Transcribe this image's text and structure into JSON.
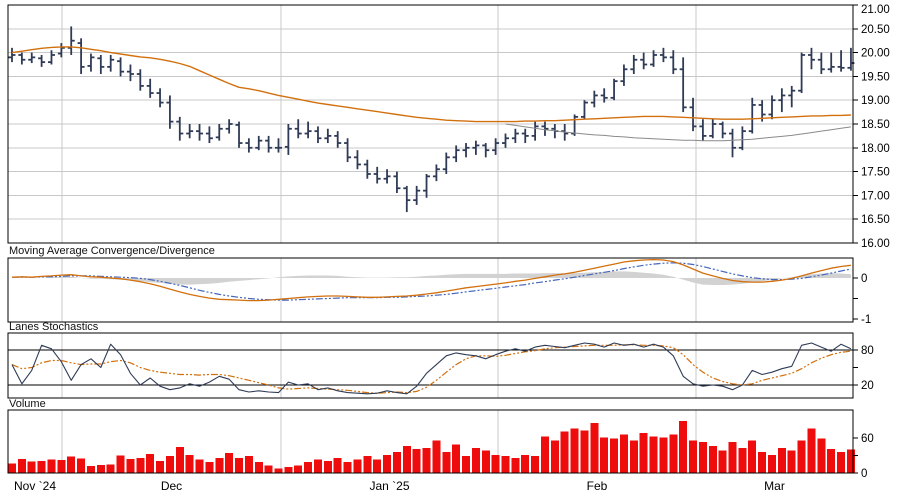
{
  "page": {
    "background": "#ffffff"
  },
  "colors": {
    "price_bars": "#2f3b56",
    "ma_primary": "#d2700e",
    "ma_secondary": "#8a8a8a",
    "macd_line": "#d2700e",
    "macd_signal": "#4466bb",
    "macd_histogram": "#d2d2d2",
    "stoch_k": "#2f3b56",
    "stoch_d": "#d2700e",
    "volume_bars": "#ee0c0c",
    "grid": "#c8c8c8",
    "panel_border": "#000000",
    "axis_text": "#000000"
  },
  "chart_data": {
    "type": "ohlc",
    "x_axis": {
      "tick_labels": [
        "Nov `24",
        "Dec",
        "Jan `25",
        "Feb",
        "Mar"
      ],
      "month_boundaries_x": [
        62,
        281,
        498,
        696
      ]
    },
    "price_panel": {
      "ylim": [
        16,
        21
      ],
      "ytick_values": [
        21,
        20.5,
        20,
        19.5,
        19,
        18.5,
        18,
        17.5,
        17,
        16.5,
        16
      ],
      "ytick_labels": [
        "21.00",
        "20.50",
        "20.00",
        "19.50",
        "19.00",
        "18.50",
        "18.00",
        "17.50",
        "17.00",
        "16.50",
        "16.00"
      ],
      "ohlc": [
        [
          19.9,
          20.1,
          19.8,
          19.95
        ],
        [
          19.95,
          20.0,
          19.75,
          19.85
        ],
        [
          19.85,
          20.0,
          19.78,
          19.9
        ],
        [
          19.88,
          19.95,
          19.7,
          19.8
        ],
        [
          19.8,
          20.05,
          19.75,
          19.95
        ],
        [
          19.98,
          20.2,
          19.9,
          20.1
        ],
        [
          20.1,
          20.55,
          19.95,
          20.25
        ],
        [
          20.2,
          20.3,
          19.55,
          19.7
        ],
        [
          19.72,
          19.98,
          19.6,
          19.9
        ],
        [
          19.88,
          19.95,
          19.55,
          19.7
        ],
        [
          19.7,
          19.95,
          19.6,
          19.85
        ],
        [
          19.82,
          19.9,
          19.5,
          19.6
        ],
        [
          19.6,
          19.75,
          19.4,
          19.55
        ],
        [
          19.55,
          19.65,
          19.2,
          19.3
        ],
        [
          19.3,
          19.45,
          19.05,
          19.15
        ],
        [
          19.15,
          19.25,
          18.85,
          18.95
        ],
        [
          18.95,
          19.1,
          18.4,
          18.55
        ],
        [
          18.55,
          18.65,
          18.15,
          18.3
        ],
        [
          18.3,
          18.5,
          18.2,
          18.35
        ],
        [
          18.35,
          18.5,
          18.15,
          18.3
        ],
        [
          18.3,
          18.45,
          18.1,
          18.2
        ],
        [
          18.22,
          18.5,
          18.15,
          18.4
        ],
        [
          18.4,
          18.6,
          18.3,
          18.5
        ],
        [
          18.48,
          18.55,
          18.0,
          18.1
        ],
        [
          18.1,
          18.2,
          17.9,
          18.0
        ],
        [
          18.0,
          18.25,
          17.95,
          18.15
        ],
        [
          18.15,
          18.25,
          17.9,
          18.0
        ],
        [
          18.0,
          18.2,
          17.9,
          18.0
        ],
        [
          18.02,
          18.5,
          17.85,
          18.4
        ],
        [
          18.4,
          18.6,
          18.2,
          18.3
        ],
        [
          18.3,
          18.55,
          18.2,
          18.35
        ],
        [
          18.35,
          18.45,
          18.1,
          18.2
        ],
        [
          18.2,
          18.4,
          18.1,
          18.25
        ],
        [
          18.25,
          18.35,
          18.0,
          18.1
        ],
        [
          18.1,
          18.2,
          17.7,
          17.8
        ],
        [
          17.8,
          17.95,
          17.55,
          17.65
        ],
        [
          17.65,
          17.75,
          17.35,
          17.45
        ],
        [
          17.45,
          17.6,
          17.25,
          17.35
        ],
        [
          17.35,
          17.55,
          17.25,
          17.4
        ],
        [
          17.4,
          17.5,
          17.05,
          17.15
        ],
        [
          17.15,
          17.2,
          16.65,
          16.9
        ],
        [
          16.9,
          17.2,
          16.8,
          17.1
        ],
        [
          17.1,
          17.45,
          16.95,
          17.4
        ],
        [
          17.4,
          17.65,
          17.3,
          17.55
        ],
        [
          17.55,
          17.9,
          17.45,
          17.8
        ],
        [
          17.8,
          18.05,
          17.7,
          17.95
        ],
        [
          17.95,
          18.1,
          17.8,
          18.0
        ],
        [
          18.0,
          18.15,
          17.85,
          18.05
        ],
        [
          18.05,
          18.1,
          17.8,
          17.95
        ],
        [
          17.95,
          18.2,
          17.85,
          18.1
        ],
        [
          18.1,
          18.3,
          18.0,
          18.2
        ],
        [
          18.2,
          18.4,
          18.1,
          18.3
        ],
        [
          18.3,
          18.4,
          18.1,
          18.25
        ],
        [
          18.25,
          18.55,
          18.15,
          18.45
        ],
        [
          18.45,
          18.55,
          18.25,
          18.4
        ],
        [
          18.4,
          18.5,
          18.2,
          18.35
        ],
        [
          18.35,
          18.5,
          18.15,
          18.3
        ],
        [
          18.3,
          18.7,
          18.25,
          18.65
        ],
        [
          18.65,
          19.0,
          18.6,
          18.95
        ],
        [
          18.95,
          19.2,
          18.85,
          19.1
        ],
        [
          19.1,
          19.25,
          18.95,
          19.05
        ],
        [
          19.05,
          19.45,
          19.0,
          19.4
        ],
        [
          19.4,
          19.75,
          19.3,
          19.65
        ],
        [
          19.65,
          19.95,
          19.55,
          19.85
        ],
        [
          19.85,
          20.0,
          19.65,
          19.75
        ],
        [
          19.75,
          20.05,
          19.7,
          19.95
        ],
        [
          19.95,
          20.1,
          19.8,
          19.9
        ],
        [
          19.9,
          20.05,
          19.55,
          19.65
        ],
        [
          19.65,
          19.9,
          18.75,
          18.85
        ],
        [
          18.85,
          19.05,
          18.35,
          18.45
        ],
        [
          18.45,
          18.6,
          18.15,
          18.25
        ],
        [
          18.25,
          18.6,
          18.2,
          18.5
        ],
        [
          18.5,
          18.55,
          18.2,
          18.3
        ],
        [
          18.3,
          18.4,
          17.8,
          18.0
        ],
        [
          18.0,
          18.45,
          17.95,
          18.35
        ],
        [
          18.35,
          19.05,
          18.3,
          18.9
        ],
        [
          18.9,
          19.0,
          18.55,
          18.7
        ],
        [
          18.7,
          19.1,
          18.6,
          19.0
        ],
        [
          19.0,
          19.25,
          18.75,
          19.1
        ],
        [
          19.1,
          19.3,
          18.85,
          19.2
        ],
        [
          19.2,
          20.0,
          19.15,
          19.95
        ],
        [
          19.95,
          20.1,
          19.65,
          19.85
        ],
        [
          19.85,
          20.0,
          19.55,
          19.65
        ],
        [
          19.65,
          20.0,
          19.58,
          19.7
        ],
        [
          19.7,
          20.05,
          19.6,
          19.68
        ],
        [
          19.68,
          20.1,
          19.62,
          19.78
        ]
      ],
      "ma_primary": [
        20.0,
        20.03,
        20.06,
        20.09,
        20.11,
        20.12,
        20.12,
        20.1,
        20.07,
        20.04,
        20.0,
        19.97,
        19.94,
        19.91,
        19.89,
        19.86,
        19.82,
        19.77,
        19.71,
        19.62,
        19.53,
        19.44,
        19.35,
        19.27,
        19.24,
        19.2,
        19.15,
        19.1,
        19.06,
        19.02,
        18.98,
        18.94,
        18.91,
        18.88,
        18.85,
        18.82,
        18.79,
        18.76,
        18.73,
        18.7,
        18.67,
        18.64,
        18.62,
        18.6,
        18.58,
        18.57,
        18.56,
        18.55,
        18.55,
        18.55,
        18.55,
        18.55,
        18.56,
        18.56,
        18.57,
        18.57,
        18.58,
        18.59,
        18.6,
        18.61,
        18.62,
        18.63,
        18.64,
        18.65,
        18.66,
        18.66,
        18.66,
        18.65,
        18.64,
        18.63,
        18.62,
        18.61,
        18.6,
        18.6,
        18.6,
        18.61,
        18.62,
        18.63,
        18.64,
        18.65,
        18.66,
        18.67,
        18.67,
        18.68,
        18.68,
        18.69
      ],
      "ma_secondary_start_index": 50,
      "ma_secondary": [
        18.5,
        18.47,
        18.44,
        18.41,
        18.38,
        18.36,
        18.33,
        18.31,
        18.29,
        18.27,
        18.26,
        18.24,
        18.23,
        18.21,
        18.2,
        18.19,
        18.18,
        18.17,
        18.16,
        18.16,
        18.15,
        18.15,
        18.15,
        18.16,
        18.17,
        18.18,
        18.2,
        18.22,
        18.24,
        18.26,
        18.29,
        18.32,
        18.35,
        18.38,
        18.41,
        18.44
      ]
    },
    "macd_panel": {
      "title": "Moving Average Convergence/Divergence",
      "ytick_values": [
        0,
        -0.5,
        -1
      ],
      "ytick_labels": [
        "0",
        "",
        "-1"
      ],
      "macd": [
        0.02,
        0.03,
        0.02,
        0.04,
        0.05,
        0.07,
        0.08,
        0.05,
        0.03,
        0.02,
        0.0,
        -0.02,
        -0.05,
        -0.09,
        -0.14,
        -0.2,
        -0.27,
        -0.34,
        -0.4,
        -0.45,
        -0.49,
        -0.52,
        -0.53,
        -0.54,
        -0.55,
        -0.55,
        -0.54,
        -0.52,
        -0.5,
        -0.48,
        -0.46,
        -0.45,
        -0.44,
        -0.44,
        -0.45,
        -0.46,
        -0.47,
        -0.47,
        -0.46,
        -0.45,
        -0.44,
        -0.42,
        -0.39,
        -0.36,
        -0.32,
        -0.28,
        -0.24,
        -0.21,
        -0.18,
        -0.15,
        -0.12,
        -0.08,
        -0.05,
        -0.01,
        0.03,
        0.07,
        0.1,
        0.14,
        0.19,
        0.24,
        0.29,
        0.34,
        0.39,
        0.42,
        0.44,
        0.45,
        0.44,
        0.4,
        0.32,
        0.22,
        0.12,
        0.05,
        -0.01,
        -0.06,
        -0.09,
        -0.1,
        -0.1,
        -0.08,
        -0.05,
        -0.01,
        0.05,
        0.12,
        0.18,
        0.24,
        0.28,
        0.31
      ],
      "signal": [
        0.02,
        0.02,
        0.02,
        0.03,
        0.03,
        0.04,
        0.05,
        0.05,
        0.05,
        0.04,
        0.03,
        0.02,
        0.01,
        -0.01,
        -0.04,
        -0.08,
        -0.13,
        -0.18,
        -0.24,
        -0.3,
        -0.35,
        -0.4,
        -0.44,
        -0.47,
        -0.5,
        -0.52,
        -0.53,
        -0.54,
        -0.54,
        -0.53,
        -0.52,
        -0.51,
        -0.5,
        -0.49,
        -0.48,
        -0.48,
        -0.48,
        -0.48,
        -0.47,
        -0.47,
        -0.46,
        -0.45,
        -0.44,
        -0.42,
        -0.4,
        -0.37,
        -0.34,
        -0.31,
        -0.28,
        -0.25,
        -0.22,
        -0.19,
        -0.16,
        -0.12,
        -0.09,
        -0.05,
        -0.02,
        0.02,
        0.06,
        0.1,
        0.14,
        0.18,
        0.23,
        0.27,
        0.31,
        0.34,
        0.36,
        0.37,
        0.36,
        0.33,
        0.28,
        0.22,
        0.16,
        0.1,
        0.05,
        0.01,
        -0.02,
        -0.04,
        -0.04,
        -0.03,
        -0.01,
        0.03,
        0.07,
        0.12,
        0.17,
        0.22
      ]
    },
    "stoch_panel": {
      "title": "Lanes Stochastics",
      "ytick_values": [
        80,
        50,
        20
      ],
      "ytick_labels": [
        "80",
        "",
        "20"
      ],
      "hlines": [
        80,
        20
      ],
      "k": [
        55,
        22,
        45,
        88,
        82,
        60,
        28,
        55,
        65,
        50,
        90,
        72,
        40,
        20,
        32,
        18,
        12,
        15,
        22,
        18,
        25,
        35,
        30,
        12,
        8,
        10,
        8,
        7,
        25,
        20,
        22,
        12,
        15,
        10,
        7,
        6,
        5,
        6,
        10,
        7,
        5,
        18,
        40,
        55,
        70,
        75,
        72,
        70,
        65,
        72,
        78,
        82,
        78,
        85,
        88,
        86,
        84,
        88,
        92,
        90,
        85,
        92,
        88,
        90,
        85,
        90,
        85,
        70,
        35,
        22,
        18,
        20,
        18,
        12,
        20,
        45,
        38,
        42,
        48,
        52,
        88,
        92,
        85,
        78,
        90,
        82
      ],
      "d": [
        55,
        48,
        50,
        58,
        62,
        62,
        58,
        55,
        56,
        56,
        60,
        62,
        58,
        50,
        45,
        42,
        40,
        38,
        38,
        37,
        38,
        38,
        36,
        32,
        28,
        24,
        20,
        15,
        13,
        14,
        15,
        14,
        13,
        12,
        11,
        9,
        7,
        6,
        7,
        8,
        7,
        9,
        16,
        28,
        42,
        55,
        65,
        70,
        70,
        69,
        71,
        74,
        77,
        79,
        82,
        84,
        85,
        86,
        87,
        88,
        88,
        88,
        89,
        89,
        88,
        88,
        87,
        84,
        72,
        55,
        42,
        32,
        26,
        22,
        20,
        22,
        28,
        32,
        36,
        40,
        48,
        58,
        66,
        72,
        76,
        78
      ]
    },
    "volume_panel": {
      "title": "Volume",
      "ytick_values": [
        60,
        30,
        0
      ],
      "ytick_labels": [
        "60",
        "",
        "0"
      ],
      "values": [
        16,
        24,
        20,
        21,
        23,
        22,
        28,
        25,
        12,
        14,
        15,
        30,
        24,
        26,
        33,
        21,
        29,
        45,
        31,
        23,
        19,
        26,
        34,
        26,
        29,
        19,
        13,
        8,
        10,
        13,
        19,
        23,
        21,
        26,
        19,
        23,
        29,
        23,
        31,
        36,
        46,
        41,
        43,
        56,
        36,
        49,
        29,
        43,
        39,
        31,
        29,
        26,
        31,
        29,
        63,
        56,
        71,
        76,
        73,
        86,
        61,
        59,
        66,
        56,
        69,
        63,
        61,
        66,
        89,
        56,
        53,
        46,
        39,
        53,
        43,
        56,
        36,
        31,
        43,
        39,
        56,
        76,
        59,
        41,
        36,
        40
      ]
    }
  }
}
